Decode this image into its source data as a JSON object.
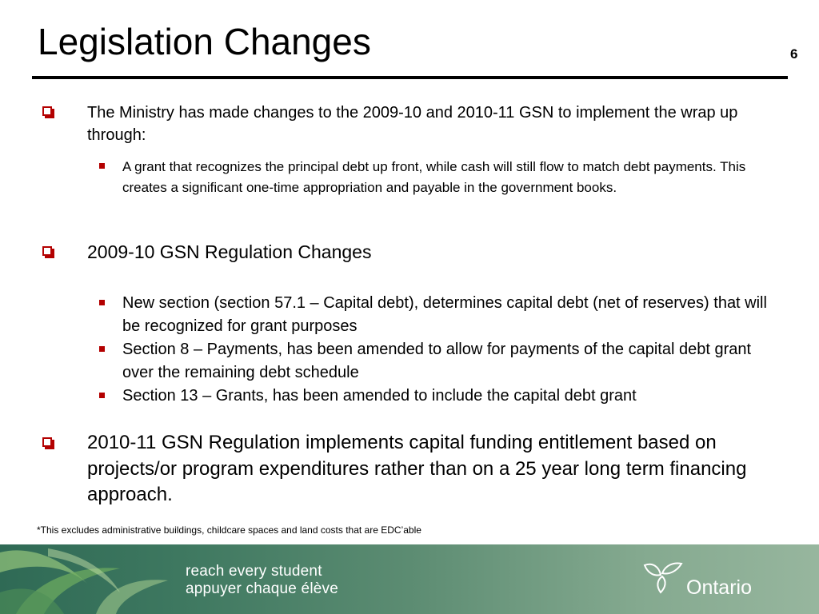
{
  "slide": {
    "title": "Legislation Changes",
    "bullets": [
      {
        "text": "The Ministry has made changes to the 2009-10 and 2010-11 GSN to implement the wrap up through:",
        "subbullets": [
          "A grant that recognizes the principal debt up front, while cash will still flow to match debt payments. This creates a significant one-time appropriation and payable in the government books."
        ]
      },
      {
        "text": "2009-10 GSN Regulation Changes",
        "subbullets": [
          "New section (section 57.1 – Capital debt), determines capital debt (net of reserves) that will be recognized for grant purposes",
          "Section 8 – Payments, has been amended to allow for payments of the capital debt grant over the remaining debt schedule",
          "Section 13 – Grants, has been amended to include the capital debt grant"
        ]
      },
      {
        "text": "2010-11 GSN Regulation implements capital funding entitlement based on projects/or program expenditures rather than on a 25 year long term financing approach.",
        "subbullets": []
      }
    ],
    "footnote": "*This excludes administrative buildings, childcare spaces and land costs that are EDC’able",
    "page_number": "6"
  },
  "footer": {
    "tagline_line1": "reach every student",
    "tagline_line2": "appuyer chaque élève",
    "logo_text": "Ontario",
    "logo_icon": "trillium-icon"
  },
  "colors": {
    "bullet_red": "#b30000",
    "footer_green_dark": "#2f6a55",
    "footer_green_light": "#97b69e"
  }
}
